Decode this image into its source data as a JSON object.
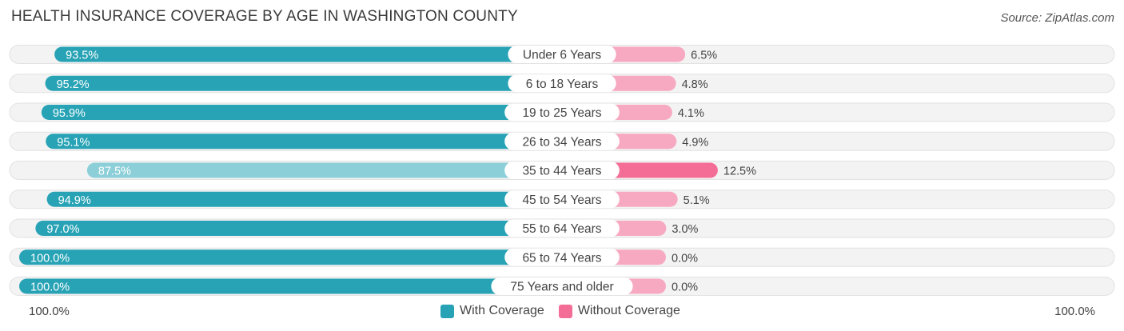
{
  "title": "HEALTH INSURANCE COVERAGE BY AGE IN WASHINGTON COUNTY",
  "source": "Source: ZipAtlas.com",
  "colors": {
    "with_dark": "#27a3b5",
    "with_light": "#8ccfd9",
    "without_dark": "#f46d96",
    "without_light": "#f7a9c1",
    "track": "#f1f1f1"
  },
  "axis": {
    "left_label": "100.0%",
    "right_label": "100.0%"
  },
  "legend": {
    "with_label": "With Coverage",
    "without_label": "Without Coverage"
  },
  "chart_data": {
    "type": "bar",
    "orientation": "diverging-horizontal",
    "title": "HEALTH INSURANCE COVERAGE BY AGE IN WASHINGTON COUNTY",
    "categories": [
      "Under 6 Years",
      "6 to 18 Years",
      "19 to 25 Years",
      "26 to 34 Years",
      "35 to 44 Years",
      "45 to 54 Years",
      "55 to 64 Years",
      "65 to 74 Years",
      "75 Years and older"
    ],
    "series": [
      {
        "name": "With Coverage",
        "values": [
          93.5,
          95.2,
          95.9,
          95.1,
          87.5,
          94.9,
          97.0,
          100.0,
          100.0
        ],
        "labels": [
          "93.5%",
          "95.2%",
          "95.9%",
          "95.1%",
          "87.5%",
          "94.9%",
          "97.0%",
          "100.0%",
          "100.0%"
        ]
      },
      {
        "name": "Without Coverage",
        "values": [
          6.5,
          4.8,
          4.1,
          4.9,
          12.5,
          5.1,
          3.0,
          0.0,
          0.0
        ],
        "labels": [
          "6.5%",
          "4.8%",
          "4.1%",
          "4.9%",
          "12.5%",
          "5.1%",
          "3.0%",
          "0.0%",
          "0.0%"
        ]
      }
    ],
    "xlim": [
      0,
      100
    ],
    "legend_position": "bottom-center"
  }
}
